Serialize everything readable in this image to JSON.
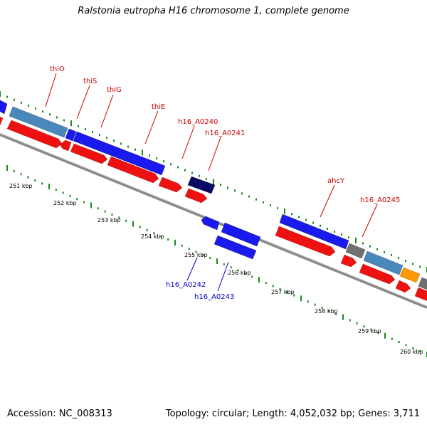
{
  "title": "Ralstonia eutropha H16 chromosome 1, complete genome",
  "accession": "Accession: NC_008313",
  "topology": "Topology: circular; Length: 4,052,032 bp; Genes: 3,711",
  "colors": {
    "forward": "#1a1aee",
    "reverse": "#ee1111",
    "steelblue": "#4a88bb",
    "navy": "#0a0a66",
    "grey": "#707070",
    "orange": "#ff9900",
    "tick": "#1a8a1a",
    "label_red": "#cc0000",
    "label_blue": "#0000cc"
  },
  "kbp_labels": [
    "251 kbp",
    "252 kbp",
    "253 kbp",
    "254 kbp",
    "255 kbp",
    "256 kbp",
    "257 kbp",
    "258 kbp",
    "259 kbp",
    "260 kbp"
  ],
  "gene_labels_top": [
    "thiO",
    "thiS",
    "thiG",
    "thiE",
    "h16_A0240",
    "h16_A0241",
    "ahcY",
    "h16_A0245"
  ],
  "gene_labels_bottom": [
    "h16_A0242",
    "h16_A0243"
  ]
}
